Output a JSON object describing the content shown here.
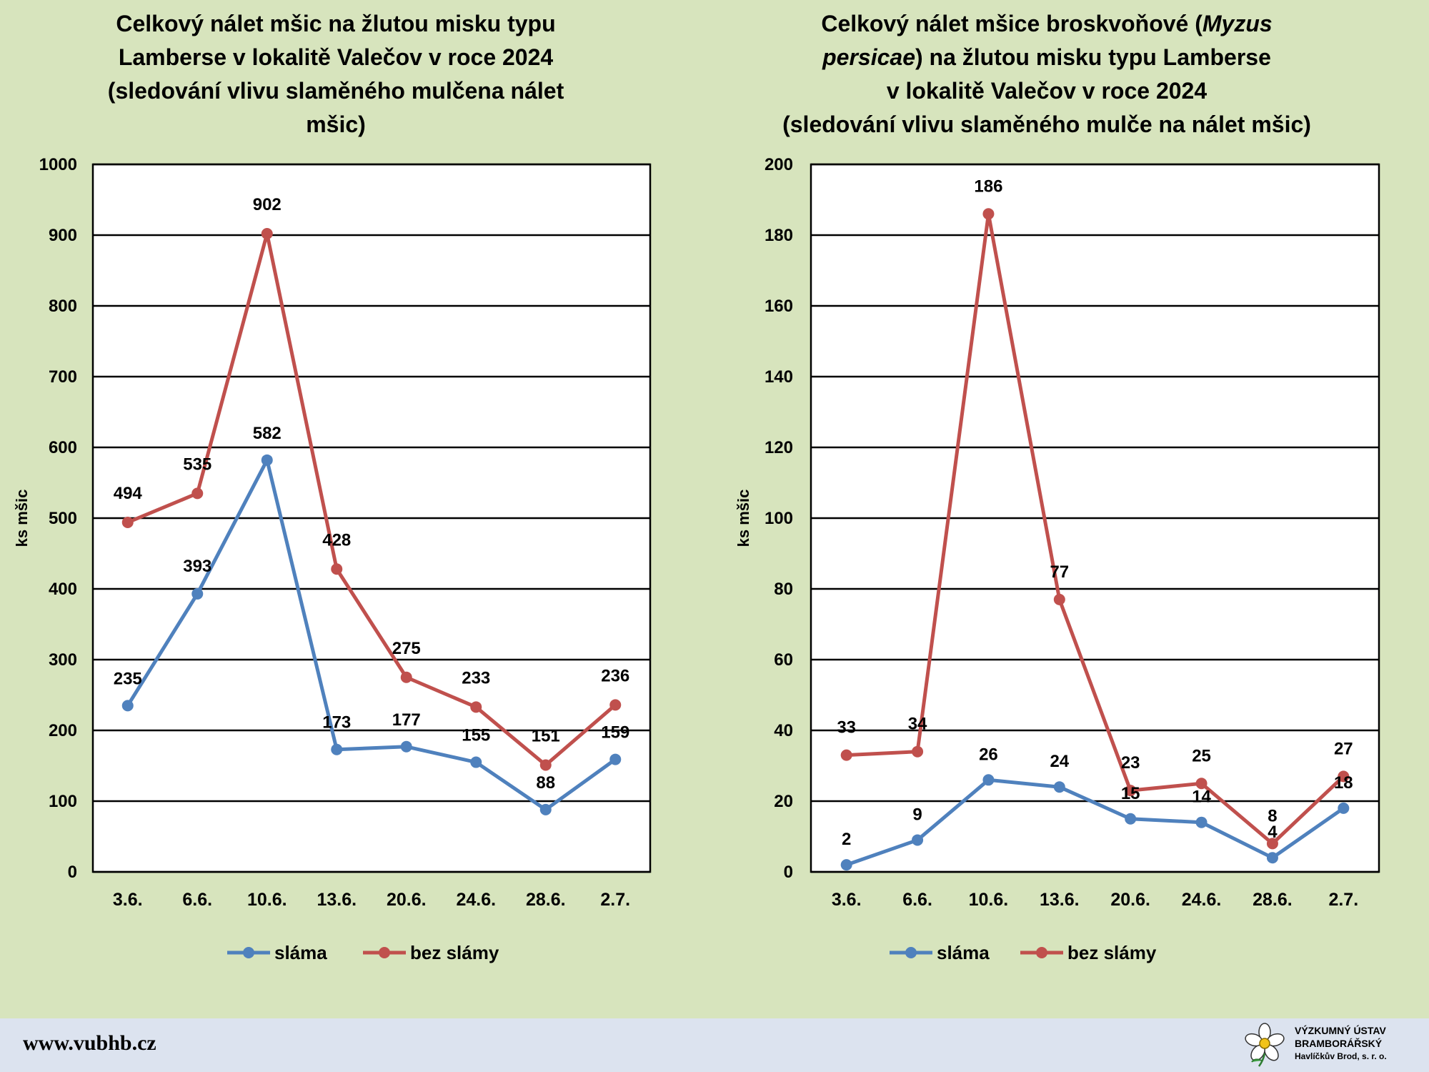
{
  "chart_data": [
    {
      "type": "line",
      "title_parts": [
        {
          "text": "Celkový nálet mšic na žlutou misku typu",
          "italic": false
        },
        {
          "text": "\n",
          "italic": false
        },
        {
          "text": "Lamberse v lokalitě Valečov v roce 2024",
          "italic": false
        },
        {
          "text": "\n",
          "italic": false
        },
        {
          "text": "(sledování vlivu slaměného mulčena nálet",
          "italic": false
        },
        {
          "text": "\n",
          "italic": false
        },
        {
          "text": "mšic)",
          "italic": false
        }
      ],
      "ylabel": "ks mšic",
      "xlabel": "",
      "categories": [
        "3.6.",
        "6.6.",
        "10.6.",
        "13.6.",
        "20.6.",
        "24.6.",
        "28.6.",
        "2.7."
      ],
      "ylim": [
        0,
        1000
      ],
      "yticks": [
        0,
        100,
        200,
        300,
        400,
        500,
        600,
        700,
        800,
        900,
        1000
      ],
      "grid": true,
      "legend_position": "bottom",
      "series": [
        {
          "name": "sláma",
          "color": "#4f81bd",
          "values": [
            235,
            393,
            582,
            173,
            177,
            155,
            88,
            159
          ]
        },
        {
          "name": "bez slámy",
          "color": "#c0504d",
          "values": [
            494,
            535,
            902,
            428,
            275,
            233,
            151,
            236
          ]
        }
      ]
    },
    {
      "type": "line",
      "title_parts": [
        {
          "text": "Celkový nálet mšice broskvoňové (",
          "italic": false
        },
        {
          "text": "Myzus",
          "italic": true
        },
        {
          "text": "\n",
          "italic": false
        },
        {
          "text": "persicae",
          "italic": true
        },
        {
          "text": ") na žlutou misku typu Lamberse",
          "italic": false
        },
        {
          "text": "\n",
          "italic": false
        },
        {
          "text": "v lokalitě Valečov v roce 2024",
          "italic": false
        },
        {
          "text": "\n",
          "italic": false
        },
        {
          "text": "(sledování vlivu slaměného mulče na nálet mšic)",
          "italic": false
        }
      ],
      "ylabel": "ks mšic",
      "xlabel": "",
      "categories": [
        "3.6.",
        "6.6.",
        "10.6.",
        "13.6.",
        "20.6.",
        "24.6.",
        "28.6.",
        "2.7."
      ],
      "ylim": [
        0,
        200
      ],
      "yticks": [
        0,
        20,
        40,
        60,
        80,
        100,
        120,
        140,
        160,
        180,
        200
      ],
      "grid": true,
      "legend_position": "bottom",
      "series": [
        {
          "name": "sláma",
          "color": "#4f81bd",
          "values": [
            2,
            9,
            26,
            24,
            15,
            14,
            4,
            18
          ]
        },
        {
          "name": "bez slámy",
          "color": "#c0504d",
          "values": [
            33,
            34,
            186,
            77,
            23,
            25,
            8,
            27
          ]
        }
      ]
    }
  ],
  "footer": {
    "url": "www.vubhb.cz",
    "logo_lines": [
      "VÝZKUMNÝ ÚSTAV",
      "BRAMBORÁŘSKÝ",
      "Havlíčkův Brod, s. r. o."
    ]
  }
}
